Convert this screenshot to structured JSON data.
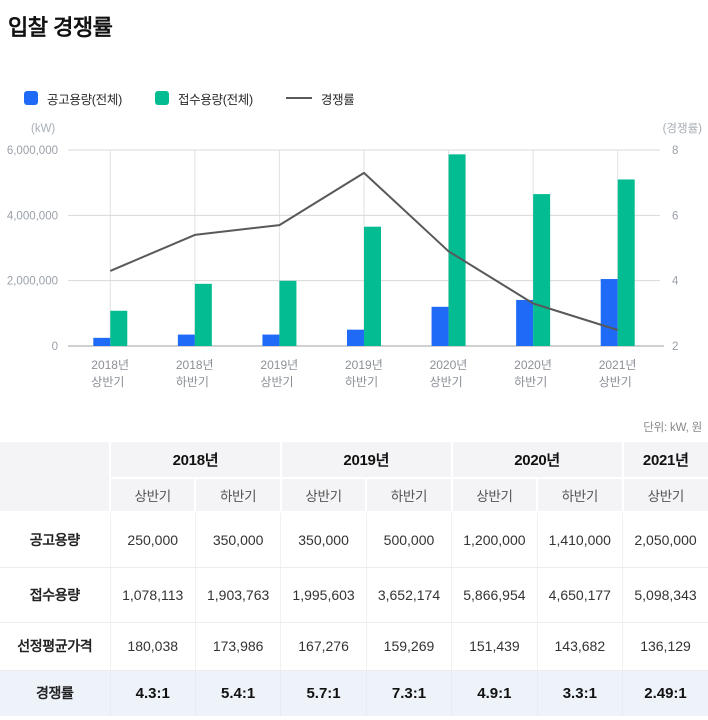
{
  "page": {
    "title": "입찰 경쟁률"
  },
  "colors": {
    "bar_blue": "#1f6bf7",
    "bar_green": "#04bc92",
    "rate_line": "#58595b",
    "grid_h": "#d8d8d8",
    "grid_v": "#e2e2e2",
    "axis_base": "#a2a2a2",
    "tick_text": "#9aa0a8",
    "unit_text": "#a8aeb5",
    "xlabel_text": "#8b9097",
    "highlight_row_bg": "#eef3fa"
  },
  "legend": [
    {
      "label": "공고용량(전체)",
      "swatch": "square",
      "color": "#1f6bf7"
    },
    {
      "label": "접수용량(전체)",
      "swatch": "square",
      "color": "#04bc92"
    },
    {
      "label": "경쟁률",
      "swatch": "line",
      "color": "#58595b"
    }
  ],
  "chart_data": {
    "type": "bar",
    "categories": [
      [
        "2018년",
        "상반기"
      ],
      [
        "2018년",
        "하반기"
      ],
      [
        "2019년",
        "상반기"
      ],
      [
        "2019년",
        "하반기"
      ],
      [
        "2020년",
        "상반기"
      ],
      [
        "2020년",
        "하반기"
      ],
      [
        "2021년",
        "상반기"
      ]
    ],
    "series": [
      {
        "name": "공고용량(전체)",
        "type": "bar",
        "axis": "left",
        "values": [
          250000,
          350000,
          350000,
          500000,
          1200000,
          1410000,
          2050000
        ]
      },
      {
        "name": "접수용량(전체)",
        "type": "bar",
        "axis": "left",
        "values": [
          1078113,
          1903763,
          1995603,
          3652174,
          5866954,
          4650177,
          5098343
        ]
      },
      {
        "name": "경쟁률",
        "type": "line",
        "axis": "right",
        "values": [
          4.3,
          5.4,
          5.7,
          7.3,
          4.9,
          3.3,
          2.49
        ]
      }
    ],
    "left_axis": {
      "unit": "(kW)",
      "min": 0,
      "max": 6000000,
      "ticks": [
        "6,000,000",
        "4,000,000",
        "2,000,000",
        "0"
      ]
    },
    "right_axis": {
      "unit": "(경쟁률)",
      "min": 2,
      "max": 8,
      "ticks": [
        "8",
        "6",
        "4",
        "2"
      ]
    },
    "grid": true,
    "legend_position": "top"
  },
  "table": {
    "unit_note": "단위: kW, 원",
    "year_headers": [
      {
        "label": "2018년",
        "span": 2
      },
      {
        "label": "2019년",
        "span": 2
      },
      {
        "label": "2020년",
        "span": 2
      },
      {
        "label": "2021년",
        "span": 1
      }
    ],
    "sub_headers": [
      "상반기",
      "하반기",
      "상반기",
      "하반기",
      "상반기",
      "하반기",
      "상반기"
    ],
    "rows": [
      {
        "label": "공고용량",
        "highlight": false,
        "values": [
          "250,000",
          "350,000",
          "350,000",
          "500,000",
          "1,200,000",
          "1,410,000",
          "2,050,000"
        ]
      },
      {
        "label": "접수용량",
        "highlight": false,
        "values": [
          "1,078,113",
          "1,903,763",
          "1,995,603",
          "3,652,174",
          "5,866,954",
          "4,650,177",
          "5,098,343"
        ]
      },
      {
        "label": "선정평균가격",
        "highlight": false,
        "values": [
          "180,038",
          "173,986",
          "167,276",
          "159,269",
          "151,439",
          "143,682",
          "136,129"
        ]
      },
      {
        "label": "경쟁률",
        "highlight": true,
        "values": [
          "4.3:1",
          "5.4:1",
          "5.7:1",
          "7.3:1",
          "4.9:1",
          "3.3:1",
          "2.49:1"
        ]
      }
    ]
  }
}
